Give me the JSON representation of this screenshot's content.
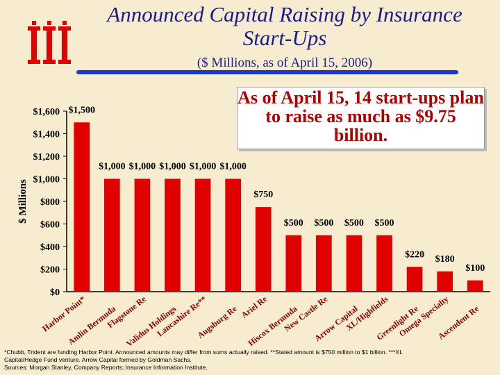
{
  "header": {
    "title": "Announced Capital Raising by Insurance Start-Ups",
    "subtitle": "($ Millions, as of  April 15, 2006)",
    "logo_icon": "iii-logo-icon"
  },
  "callout": {
    "text": "As of April 15, 14 start-ups plan to raise as much as $9.75 billion."
  },
  "chart_data": {
    "type": "bar",
    "ylabel": "$ Millions",
    "ylim": [
      0,
      1600
    ],
    "yticks": [
      0,
      200,
      400,
      600,
      800,
      1000,
      1200,
      1400,
      1600
    ],
    "ytick_labels": [
      "$0",
      "$200",
      "$400",
      "$600",
      "$800",
      "$1,000",
      "$1,200",
      "$1,400",
      "$1,600"
    ],
    "bar_color": "#e00000",
    "categories": [
      "Harbor Point*",
      "Amlin Bermuda",
      "Flagstone Re",
      "Validus Holdings",
      "Lancashire Re**",
      "Augsburg Re",
      "Ariel Re",
      "Hiscox Bermuda",
      "New Castle Re",
      "Arrow Capital",
      "XL/Highfields",
      "Greenlight Re",
      "Omega Specialty",
      "Ascendent Re"
    ],
    "values": [
      1500,
      1000,
      1000,
      1000,
      1000,
      1000,
      750,
      500,
      500,
      500,
      500,
      220,
      180,
      100
    ],
    "value_labels": [
      "$1,500",
      "$1,000",
      "$1,000",
      "$1,000",
      "$1,000",
      "$1,000",
      "$750",
      "$500",
      "$500",
      "$500",
      "$500",
      "$220",
      "$180",
      "$100"
    ]
  },
  "footnote": {
    "line1": "*Chubb, Trident are funding Harbor Point.  Announced amounts may differ from sums actually raised. **Stated amount is $750 million to $1 billion. ***XL",
    "line2": "Capital/Hedge Fund venture. Arrow Capital formed by Goldman Sachs.",
    "line3": "Sources: Morgan Stanley, Company Reports; Insurance Information Institute."
  }
}
